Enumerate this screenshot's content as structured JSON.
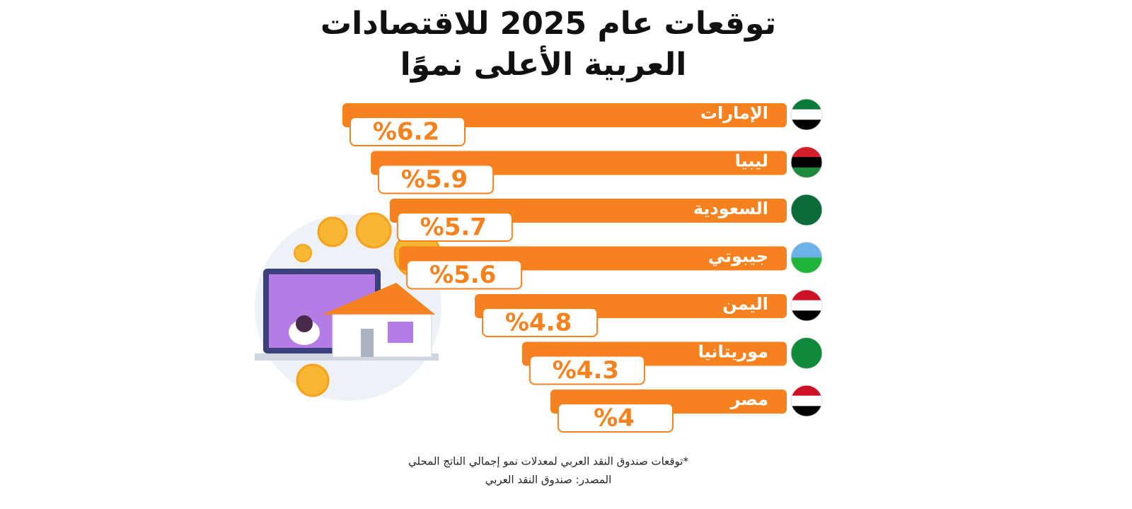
{
  "chart_data": {
    "type": "bar",
    "orientation": "horizontal",
    "title": [
      "توقعات عام 2025 للاقتصادات",
      "العربية الأعلى نموًا"
    ],
    "categories": [
      "الإمارات",
      "ليبيا",
      "السعودية",
      "جيبوتي",
      "اليمن",
      "موريتانيا",
      "مصر"
    ],
    "values": [
      6.2,
      5.9,
      5.7,
      5.6,
      4.8,
      4.3,
      4
    ],
    "value_labels": [
      "%6.2",
      "%5.9",
      "%5.7",
      "%5.6",
      "%4.8",
      "%4.3",
      "%4"
    ],
    "color": "#f5821f",
    "xlim": [
      1.5,
      6.2
    ],
    "footnote": "*توقعات صندوق النقد العربي لمعدلات نمو إجمالي الناتج المحلي",
    "source": "المصدر: صندوق النقد العربي"
  }
}
